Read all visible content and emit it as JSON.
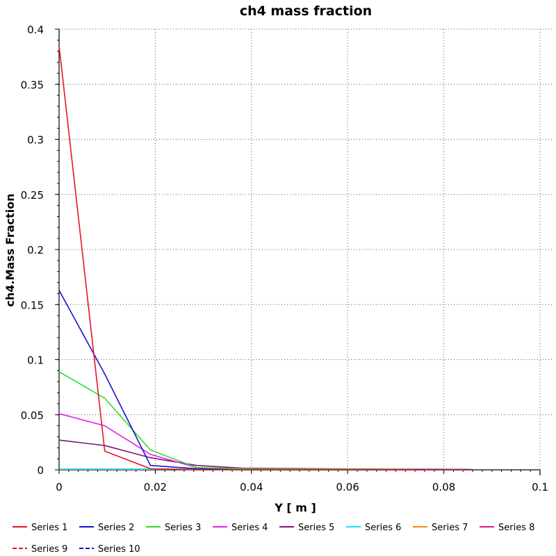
{
  "chart_data": {
    "type": "line",
    "title": "ch4 mass fraction",
    "xlabel": "Y [ m ]",
    "ylabel": "ch4.Mass Fraction",
    "xlim": [
      0,
      0.1
    ],
    "ylim": [
      0,
      0.4
    ],
    "x_ticks": [
      "0",
      "0.02",
      "0.04",
      "0.06",
      "0.08",
      "0.1"
    ],
    "y_ticks": [
      "0",
      "0.05",
      "0.1",
      "0.15",
      "0.2",
      "0.25",
      "0.3",
      "0.35",
      "0.4"
    ],
    "grid": true,
    "legend_position": "bottom",
    "series": [
      {
        "name": "Series 1",
        "color": "#e8141c",
        "dash": "solid",
        "x": [
          0,
          0.0095,
          0.019,
          0.0286,
          0.0381,
          0.0857
        ],
        "y": [
          0.385,
          0.017,
          0.001,
          0.0,
          0.0,
          0.0
        ]
      },
      {
        "name": "Series 2",
        "color": "#1414d0",
        "dash": "solid",
        "x": [
          0,
          0.0095,
          0.019,
          0.0286,
          0.0381,
          0.0857
        ],
        "y": [
          0.163,
          0.087,
          0.004,
          0.001,
          0.0,
          0.0
        ]
      },
      {
        "name": "Series 3",
        "color": "#28e028",
        "dash": "solid",
        "x": [
          0,
          0.0095,
          0.019,
          0.0286,
          0.0381,
          0.0857
        ],
        "y": [
          0.089,
          0.065,
          0.018,
          0.002,
          0.001,
          0.0
        ]
      },
      {
        "name": "Series 4",
        "color": "#e020e0",
        "dash": "solid",
        "x": [
          0,
          0.0095,
          0.019,
          0.0286,
          0.0381,
          0.0857
        ],
        "y": [
          0.051,
          0.04,
          0.014,
          0.002,
          0.001,
          0.0
        ]
      },
      {
        "name": "Series 5",
        "color": "#781478",
        "dash": "solid",
        "x": [
          0,
          0.0095,
          0.019,
          0.0286,
          0.0381,
          0.0857
        ],
        "y": [
          0.027,
          0.022,
          0.011,
          0.004,
          0.0015,
          0.0
        ]
      },
      {
        "name": "Series 6",
        "color": "#20e0f0",
        "dash": "solid",
        "x": [
          0,
          0.0857
        ],
        "y": [
          0.0005,
          0.0005
        ]
      },
      {
        "name": "Series 7",
        "color": "#f08c14",
        "dash": "solid",
        "x": [
          0,
          0.0857
        ],
        "y": [
          0.0005,
          0.0005
        ]
      },
      {
        "name": "Series 8",
        "color": "#e0148c",
        "dash": "solid",
        "x": [
          0,
          0.0857
        ],
        "y": [
          0.0005,
          0.0005
        ]
      },
      {
        "name": "Series 9",
        "color": "#e8141c",
        "dash": "dashed",
        "x": [
          0,
          0.0857
        ],
        "y": [
          0.0005,
          0.0005
        ]
      },
      {
        "name": "Series 10",
        "color": "#1414d0",
        "dash": "dashed",
        "x": [
          0,
          0.0857
        ],
        "y": [
          0.0005,
          0.0005
        ]
      }
    ]
  }
}
